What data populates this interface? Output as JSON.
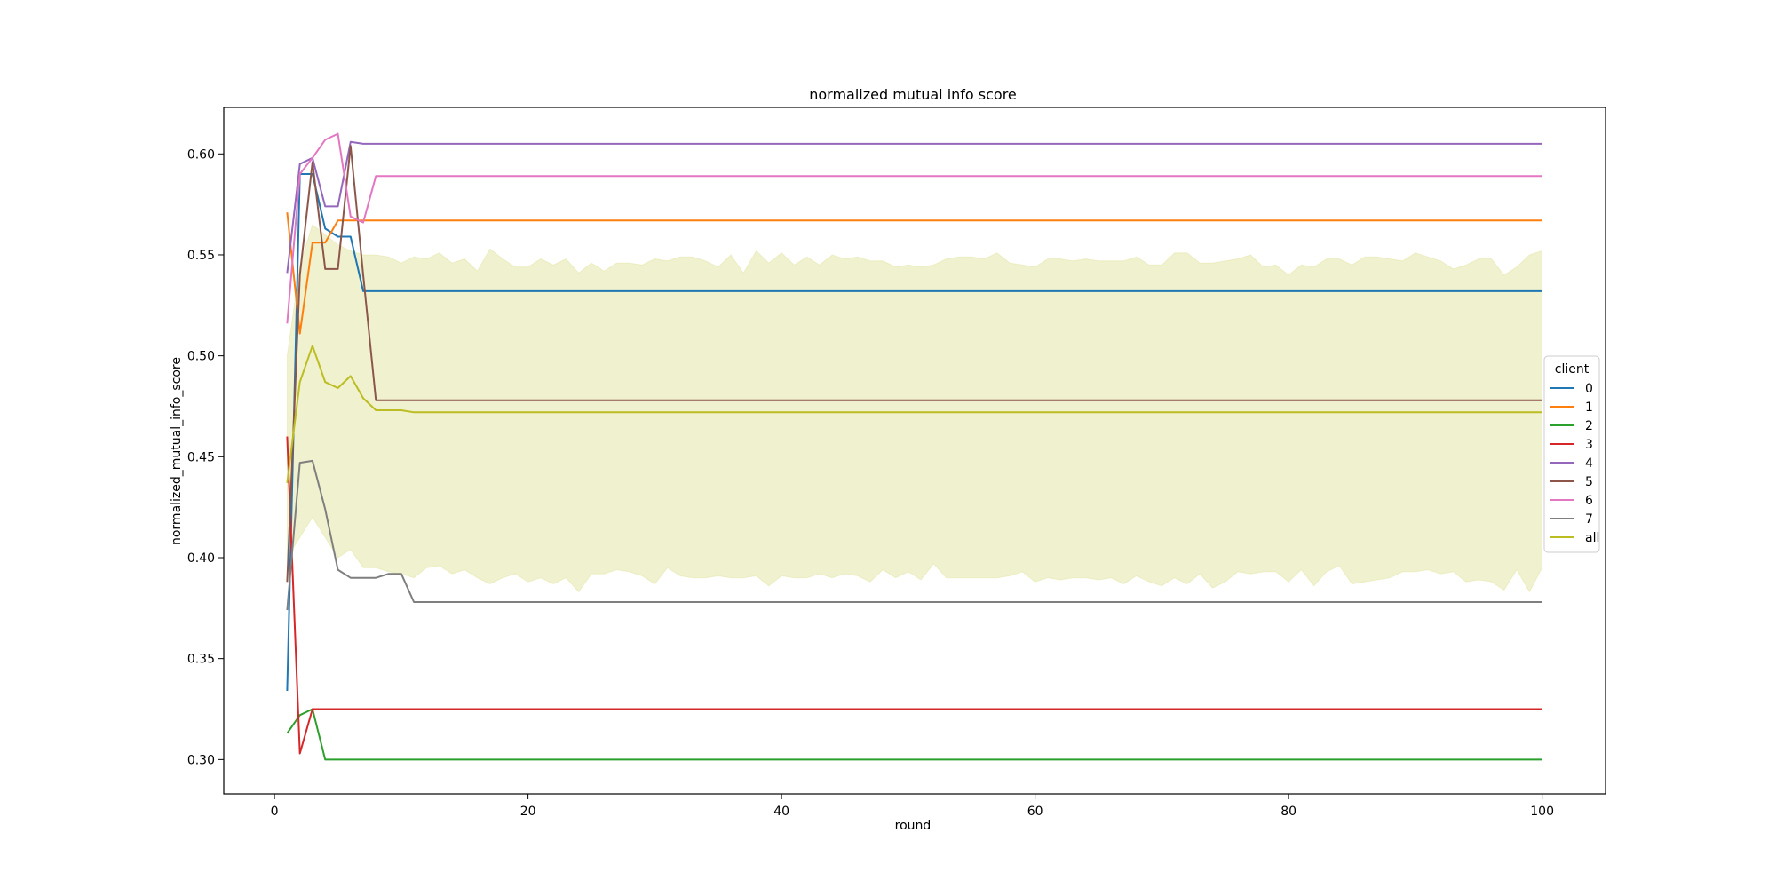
{
  "chart_data": {
    "type": "line",
    "title": "normalized mutual info score",
    "xlabel": "round",
    "ylabel": "normalized_mutual_info_score",
    "xlim": [
      -4,
      105
    ],
    "ylim": [
      0.283,
      0.623
    ],
    "xticks": [
      0,
      20,
      40,
      60,
      80,
      100
    ],
    "yticks": [
      0.3,
      0.35,
      0.4,
      0.45,
      0.5,
      0.55,
      0.6
    ],
    "grid": false,
    "legend": {
      "title": "client",
      "placement": "center-right"
    },
    "series": [
      {
        "name": "0",
        "color": "#1f77b4",
        "points": [
          [
            1,
            0.334
          ],
          [
            2,
            0.59
          ],
          [
            3,
            0.59
          ],
          [
            4,
            0.563
          ],
          [
            5,
            0.559
          ],
          [
            6,
            0.559
          ],
          [
            7,
            0.532
          ],
          [
            100,
            0.532
          ]
        ]
      },
      {
        "name": "1",
        "color": "#ff7f0e",
        "points": [
          [
            1,
            0.571
          ],
          [
            2,
            0.511
          ],
          [
            3,
            0.556
          ],
          [
            4,
            0.556
          ],
          [
            5,
            0.567
          ],
          [
            100,
            0.567
          ]
        ]
      },
      {
        "name": "2",
        "color": "#2ca02c",
        "points": [
          [
            1,
            0.313
          ],
          [
            2,
            0.322
          ],
          [
            3,
            0.325
          ],
          [
            4,
            0.3
          ],
          [
            100,
            0.3
          ]
        ]
      },
      {
        "name": "3",
        "color": "#d62728",
        "points": [
          [
            1,
            0.46
          ],
          [
            2,
            0.303
          ],
          [
            3,
            0.325
          ],
          [
            100,
            0.325
          ]
        ]
      },
      {
        "name": "4",
        "color": "#9467bd",
        "points": [
          [
            1,
            0.541
          ],
          [
            2,
            0.595
          ],
          [
            3,
            0.598
          ],
          [
            4,
            0.574
          ],
          [
            5,
            0.574
          ],
          [
            6,
            0.606
          ],
          [
            7,
            0.605
          ],
          [
            100,
            0.605
          ]
        ]
      },
      {
        "name": "5",
        "color": "#8c564b",
        "points": [
          [
            1,
            0.388
          ],
          [
            2,
            0.54
          ],
          [
            3,
            0.596
          ],
          [
            4,
            0.543
          ],
          [
            5,
            0.543
          ],
          [
            6,
            0.604
          ],
          [
            7,
            0.54
          ],
          [
            8,
            0.478
          ],
          [
            100,
            0.478
          ]
        ]
      },
      {
        "name": "6",
        "color": "#e377c2",
        "points": [
          [
            1,
            0.516
          ],
          [
            2,
            0.59
          ],
          [
            3,
            0.598
          ],
          [
            4,
            0.607
          ],
          [
            5,
            0.61
          ],
          [
            6,
            0.569
          ],
          [
            7,
            0.566
          ],
          [
            8,
            0.589
          ],
          [
            100,
            0.589
          ]
        ]
      },
      {
        "name": "7",
        "color": "#7f7f7f",
        "points": [
          [
            1,
            0.374
          ],
          [
            2,
            0.447
          ],
          [
            3,
            0.448
          ],
          [
            4,
            0.424
          ],
          [
            5,
            0.394
          ],
          [
            6,
            0.39
          ],
          [
            7,
            0.39
          ],
          [
            8,
            0.39
          ],
          [
            9,
            0.392
          ],
          [
            10,
            0.392
          ],
          [
            11,
            0.378
          ],
          [
            100,
            0.378
          ]
        ]
      },
      {
        "name": "all",
        "color": "#bcbd22",
        "points": [
          [
            1,
            0.437
          ],
          [
            2,
            0.487
          ],
          [
            3,
            0.505
          ],
          [
            4,
            0.487
          ],
          [
            5,
            0.484
          ],
          [
            6,
            0.49
          ],
          [
            7,
            0.479
          ],
          [
            8,
            0.473
          ],
          [
            9,
            0.473
          ],
          [
            10,
            0.473
          ],
          [
            11,
            0.472
          ],
          [
            100,
            0.472
          ]
        ],
        "band": {
          "x": [
            1,
            2,
            3,
            4,
            5,
            6,
            7,
            8,
            9,
            10,
            11,
            12,
            13,
            14,
            15,
            16,
            17,
            18,
            19,
            20,
            21,
            22,
            23,
            24,
            25,
            26,
            27,
            28,
            29,
            30,
            31,
            32,
            33,
            34,
            35,
            36,
            37,
            38,
            39,
            40,
            41,
            42,
            43,
            44,
            45,
            46,
            47,
            48,
            49,
            50,
            51,
            52,
            53,
            54,
            55,
            56,
            57,
            58,
            59,
            60,
            61,
            62,
            63,
            64,
            65,
            66,
            67,
            68,
            69,
            70,
            71,
            72,
            73,
            74,
            75,
            76,
            77,
            78,
            79,
            80,
            81,
            82,
            83,
            84,
            85,
            86,
            87,
            88,
            89,
            90,
            91,
            92,
            93,
            94,
            95,
            96,
            97,
            98,
            99,
            100
          ],
          "upper": [
            0.5,
            0.545,
            0.565,
            0.56,
            0.555,
            0.552,
            0.55,
            0.55,
            0.549,
            0.546,
            0.549,
            0.548,
            0.551,
            0.546,
            0.548,
            0.542,
            0.553,
            0.548,
            0.544,
            0.544,
            0.548,
            0.545,
            0.548,
            0.541,
            0.546,
            0.542,
            0.546,
            0.546,
            0.545,
            0.548,
            0.547,
            0.549,
            0.549,
            0.547,
            0.544,
            0.55,
            0.541,
            0.552,
            0.546,
            0.551,
            0.545,
            0.549,
            0.545,
            0.55,
            0.548,
            0.549,
            0.547,
            0.547,
            0.544,
            0.545,
            0.544,
            0.545,
            0.548,
            0.549,
            0.549,
            0.548,
            0.551,
            0.546,
            0.545,
            0.544,
            0.548,
            0.548,
            0.547,
            0.548,
            0.547,
            0.547,
            0.547,
            0.549,
            0.545,
            0.545,
            0.551,
            0.551,
            0.546,
            0.546,
            0.547,
            0.548,
            0.55,
            0.544,
            0.545,
            0.54,
            0.545,
            0.544,
            0.548,
            0.548,
            0.545,
            0.549,
            0.549,
            0.548,
            0.547,
            0.551,
            0.549,
            0.547,
            0.543,
            0.545,
            0.548,
            0.548,
            0.54,
            0.544,
            0.55,
            0.552
          ],
          "lower": [
            0.4,
            0.41,
            0.42,
            0.41,
            0.4,
            0.404,
            0.395,
            0.395,
            0.393,
            0.392,
            0.39,
            0.395,
            0.396,
            0.392,
            0.394,
            0.39,
            0.387,
            0.39,
            0.392,
            0.388,
            0.39,
            0.387,
            0.39,
            0.383,
            0.392,
            0.392,
            0.394,
            0.393,
            0.391,
            0.387,
            0.395,
            0.391,
            0.39,
            0.39,
            0.391,
            0.39,
            0.39,
            0.391,
            0.386,
            0.391,
            0.39,
            0.39,
            0.392,
            0.39,
            0.392,
            0.391,
            0.388,
            0.394,
            0.39,
            0.393,
            0.389,
            0.397,
            0.39,
            0.39,
            0.39,
            0.39,
            0.39,
            0.391,
            0.393,
            0.388,
            0.39,
            0.389,
            0.39,
            0.39,
            0.389,
            0.39,
            0.387,
            0.391,
            0.388,
            0.386,
            0.39,
            0.387,
            0.392,
            0.385,
            0.388,
            0.393,
            0.392,
            0.393,
            0.393,
            0.388,
            0.394,
            0.386,
            0.393,
            0.396,
            0.387,
            0.388,
            0.389,
            0.39,
            0.393,
            0.393,
            0.394,
            0.392,
            0.393,
            0.388,
            0.389,
            0.388,
            0.384,
            0.394,
            0.383,
            0.395
          ]
        }
      }
    ]
  }
}
